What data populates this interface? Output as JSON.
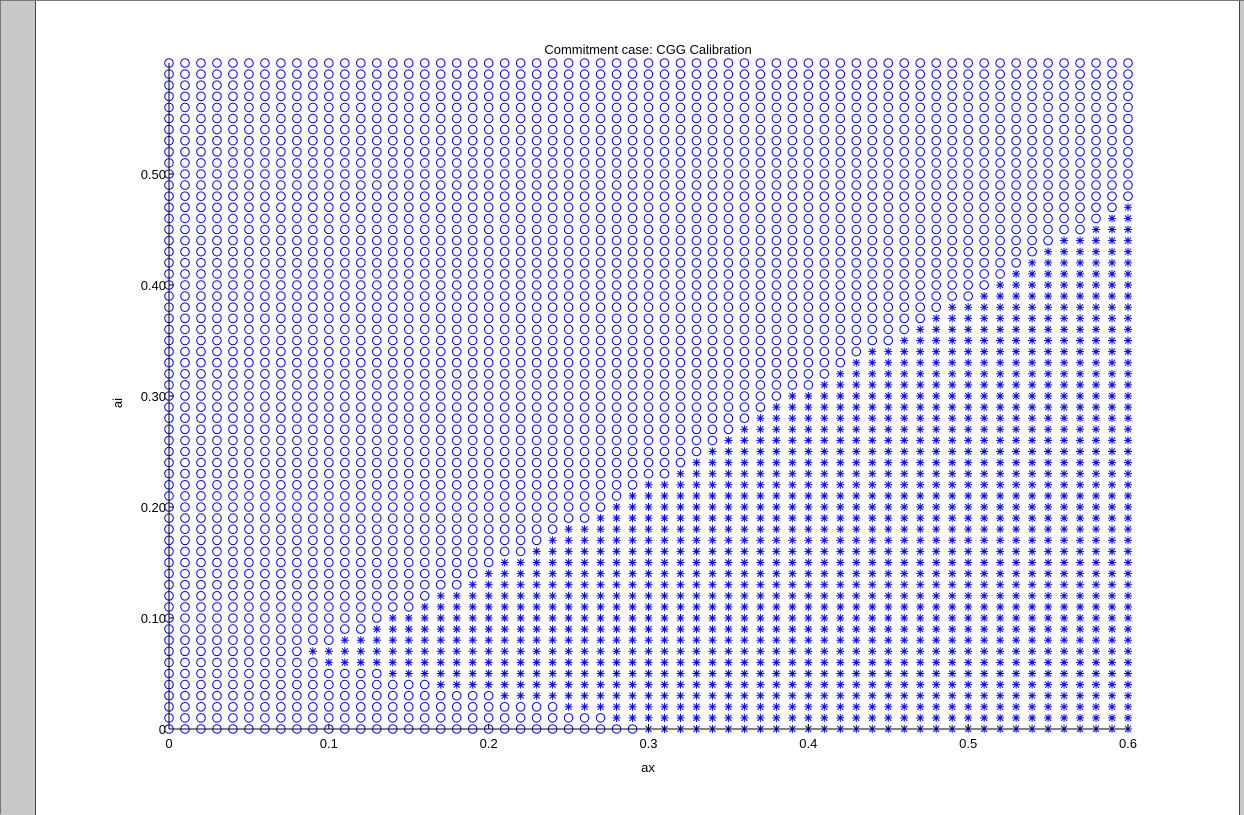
{
  "figure": {
    "background_color": "#c8c8c8",
    "canvas_color": "#ffffff"
  },
  "chart_data": {
    "type": "scatter",
    "title": "Commitment case: CGG Calibration",
    "xlabel": "ax",
    "ylabel": "ai",
    "xlim": [
      0,
      0.6
    ],
    "ylim": [
      0,
      0.6
    ],
    "x_ticks": [
      0,
      0.1,
      0.2,
      0.3,
      0.4,
      0.5,
      0.6
    ],
    "x_tick_labels": [
      "0",
      "0.1",
      "0.2",
      "0.3",
      "0.4",
      "0.5",
      "0.6"
    ],
    "y_ticks": [
      0,
      0.1,
      0.2,
      0.3,
      0.4,
      0.5
    ],
    "y_tick_labels": [
      "0",
      "0.10",
      "0.20",
      "0.30",
      "0.40",
      "0.50"
    ],
    "grid": false,
    "grid_step": 0.01,
    "marker_color": "#0000ff",
    "series": [
      {
        "marker": "circle",
        "description_values": "grid points (ax, ai) where ai > boundary(ax)"
      },
      {
        "marker": "asterisk",
        "description_values": "grid points (ax, ai) where ai <= boundary(ax)"
      }
    ],
    "boundary": {
      "ax": [
        0.09,
        0.1,
        0.11,
        0.12,
        0.13,
        0.14,
        0.15,
        0.16,
        0.17,
        0.18,
        0.19,
        0.2,
        0.21,
        0.22,
        0.23,
        0.24,
        0.25,
        0.26,
        0.27,
        0.28,
        0.29,
        0.3,
        0.31,
        0.32,
        0.33,
        0.34,
        0.35,
        0.36,
        0.37,
        0.38,
        0.39,
        0.4,
        0.41,
        0.42,
        0.43,
        0.44,
        0.45,
        0.46,
        0.47,
        0.48,
        0.49,
        0.5,
        0.51,
        0.52,
        0.53,
        0.54,
        0.55,
        0.56,
        0.57,
        0.58,
        0.59,
        0.6
      ],
      "ai_upper": [
        0.07,
        0.07,
        0.08,
        0.08,
        0.09,
        0.1,
        0.1,
        0.11,
        0.12,
        0.12,
        0.13,
        0.14,
        0.15,
        0.15,
        0.16,
        0.17,
        0.18,
        0.18,
        0.19,
        0.2,
        0.21,
        0.22,
        0.22,
        0.23,
        0.24,
        0.25,
        0.26,
        0.27,
        0.28,
        0.29,
        0.3,
        0.3,
        0.31,
        0.32,
        0.33,
        0.34,
        0.34,
        0.35,
        0.36,
        0.37,
        0.38,
        0.38,
        0.39,
        0.4,
        0.41,
        0.42,
        0.43,
        0.44,
        0.44,
        0.45,
        0.46,
        0.47
      ],
      "ai_lower": [
        0.07,
        0.06,
        0.06,
        0.06,
        0.06,
        0.05,
        0.05,
        0.05,
        0.04,
        0.04,
        0.04,
        0.04,
        0.03,
        0.03,
        0.03,
        0.03,
        0.02,
        0.02,
        0.02,
        0.01,
        0.01,
        0.0,
        0.0,
        0.0,
        0.0,
        0.0,
        0.0,
        0.0,
        0.0,
        0.0,
        0.0,
        0.0,
        0.0,
        0.0,
        0.0,
        0.0,
        0.0,
        0.0,
        0.0,
        0.0,
        0.0,
        0.0,
        0.0,
        0.0,
        0.0,
        0.0,
        0.0,
        0.0,
        0.0,
        0.0,
        0.0,
        0.0
      ]
    }
  }
}
